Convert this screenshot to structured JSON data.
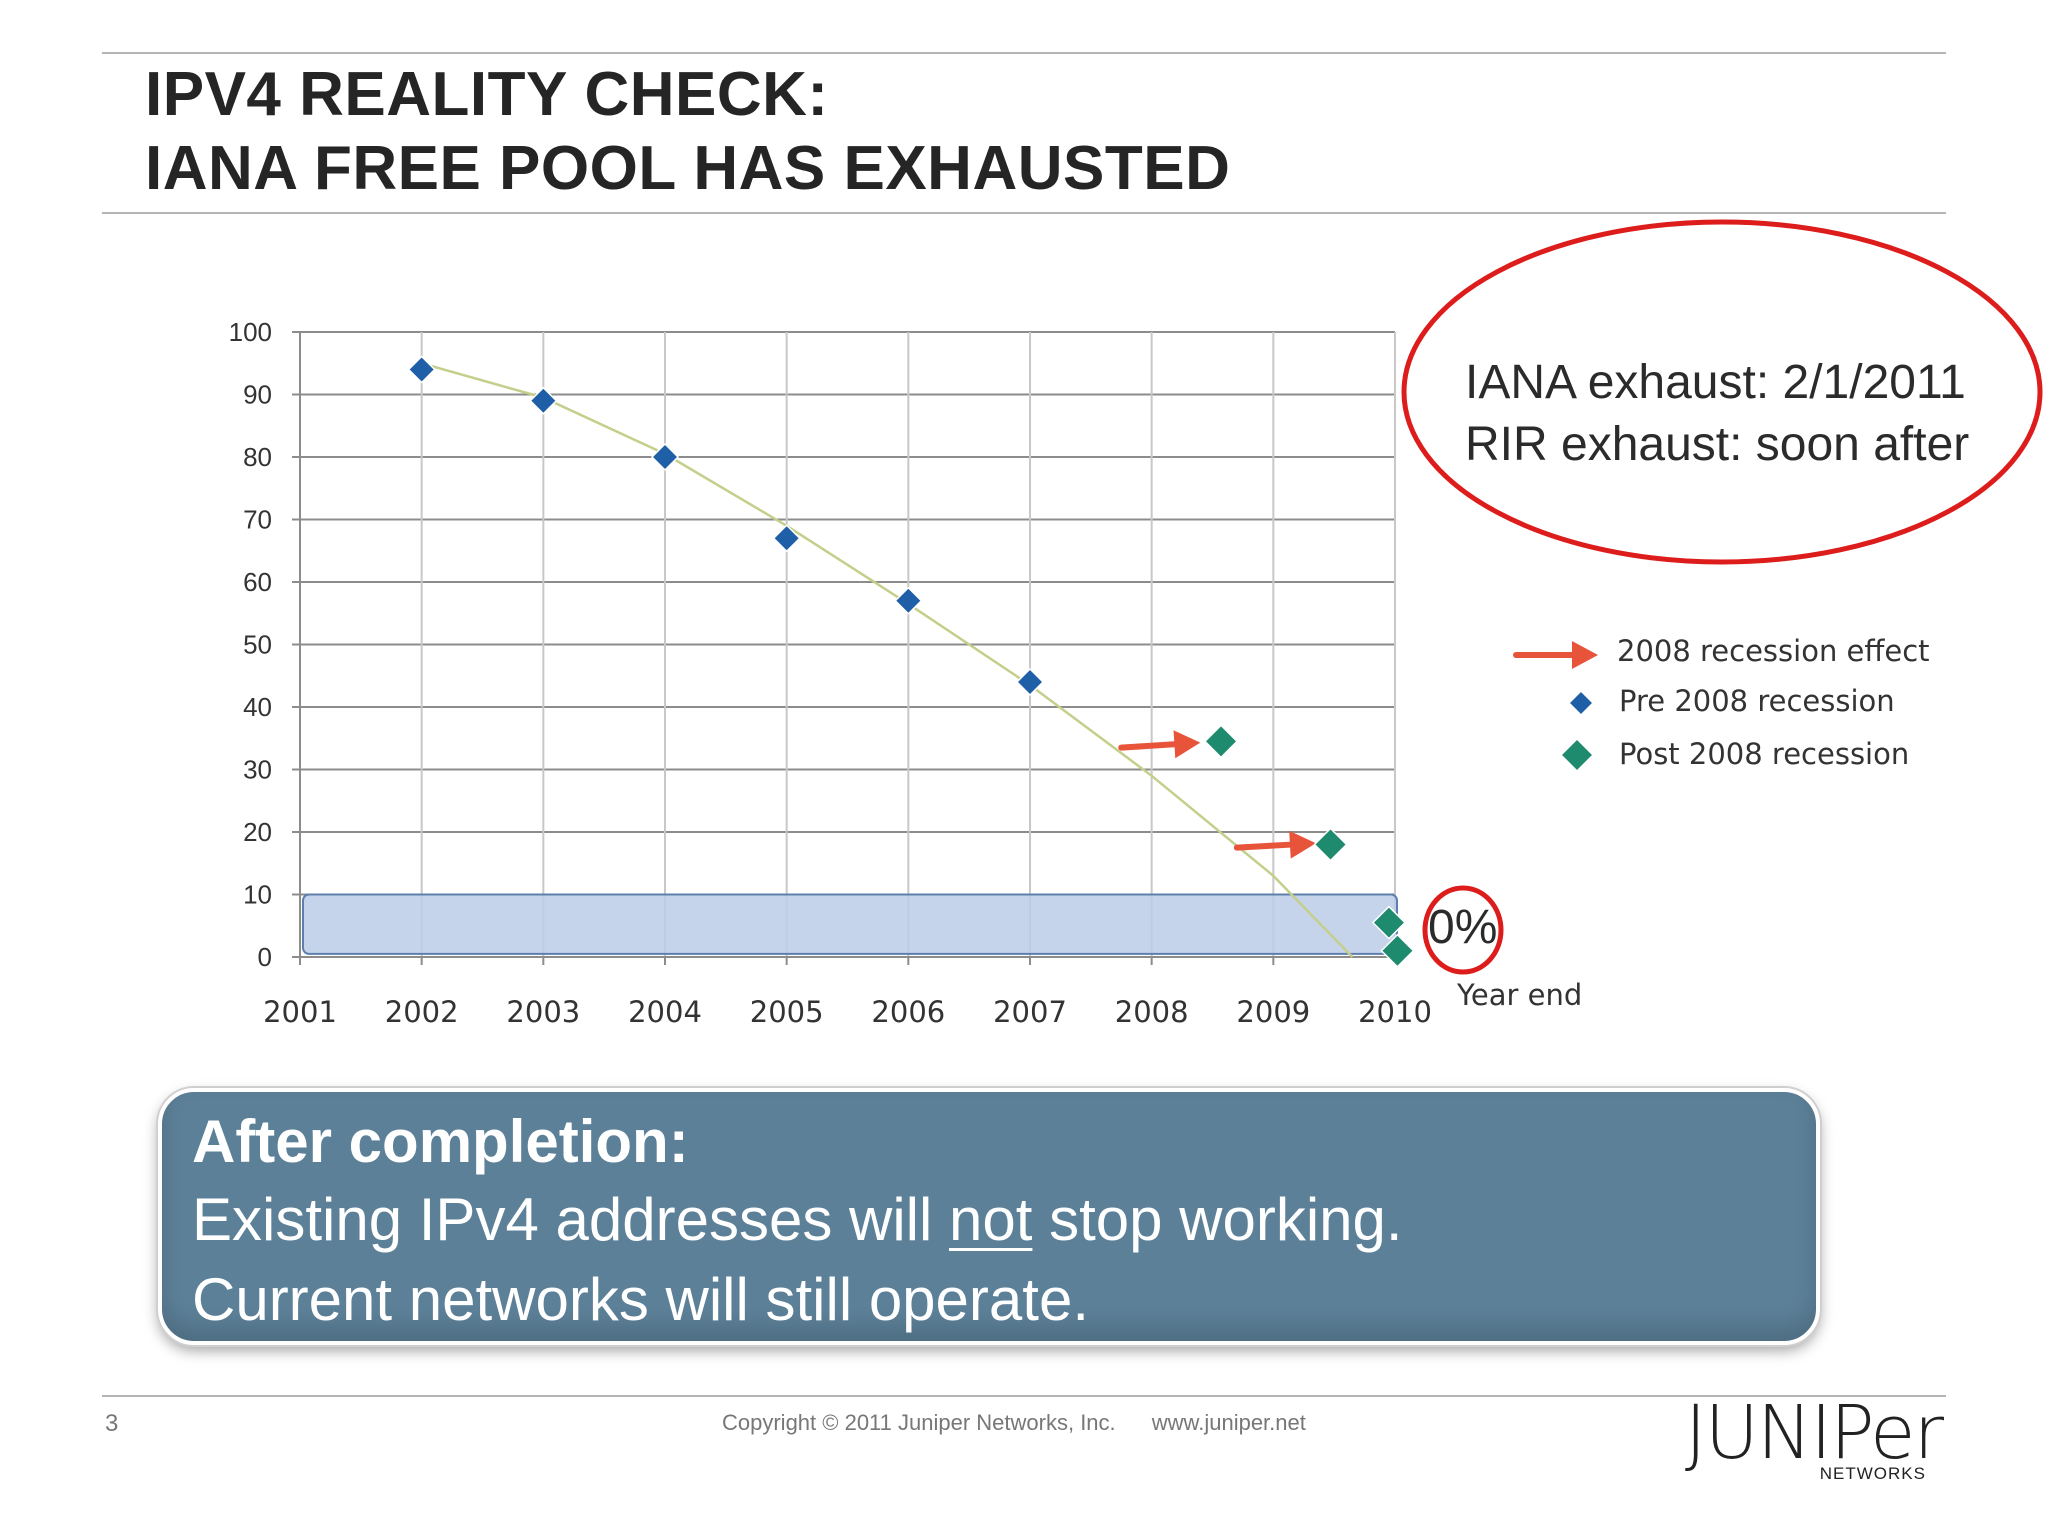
{
  "slide": {
    "title_lines": [
      "IPV4 REALITY CHECK:",
      "IANA FREE POOL HAS EXHAUSTED"
    ],
    "callout_lines": [
      "IANA exhaust: 2/1/2011",
      "RIR exhaust: soon after"
    ],
    "zero_label": "0%",
    "year_end_label": "Year end",
    "info": {
      "heading": "After completion:",
      "line1_before": "Existing IPv4 addresses will ",
      "line1_underlined": "not",
      "line1_after": " stop working.",
      "line2": "Current networks will still operate."
    },
    "footer": {
      "page_number": "3",
      "copyright": "Copyright © 2011 Juniper Networks, Inc.",
      "website": "www.juniper.net"
    },
    "logo": {
      "word": "JUNIPer",
      "sub": "NETWORKS"
    }
  },
  "colors": {
    "pre": "#1f5fa8",
    "post": "#1e8a6e",
    "arrow": "#e8543a",
    "trend": "#c3cf8a",
    "callout_ring": "#dd1c1c",
    "info_box": "#5c8098",
    "band": "#bccde8"
  },
  "chart_data": {
    "type": "scatter",
    "x_ticks": [
      "2001",
      "2002",
      "2003",
      "2004",
      "2005",
      "2006",
      "2007",
      "2008",
      "2009",
      "2010"
    ],
    "y_ticks": [
      "0",
      "10",
      "20",
      "30",
      "40",
      "50",
      "60",
      "70",
      "80",
      "90",
      "100"
    ],
    "xlim": [
      2001,
      2010
    ],
    "ylim": [
      0,
      100
    ],
    "grid": true,
    "legend_position": "right",
    "series": [
      {
        "name": "Pre 2008 recession",
        "marker": "diamond-small",
        "color": "#1f5fa8",
        "points": [
          [
            2002,
            94
          ],
          [
            2003,
            89
          ],
          [
            2004,
            80
          ],
          [
            2005,
            67
          ],
          [
            2006,
            57
          ],
          [
            2007,
            44
          ]
        ]
      },
      {
        "name": "Post 2008 recession",
        "marker": "diamond-large",
        "color": "#1e8a6e",
        "points": [
          [
            2008.57,
            34.5
          ],
          [
            2009.47,
            18
          ],
          [
            2009.95,
            5.5
          ],
          [
            2010.02,
            1
          ]
        ]
      }
    ],
    "trendline": [
      [
        2002,
        95
      ],
      [
        2003,
        89.5
      ],
      [
        2004,
        80.5
      ],
      [
        2005,
        69
      ],
      [
        2006,
        56.5
      ],
      [
        2007,
        43.5
      ],
      [
        2008,
        29
      ],
      [
        2009,
        13
      ],
      [
        2009.65,
        0
      ]
    ],
    "annotations": [
      {
        "name": "2008 recession effect",
        "type": "arrow",
        "from": [
          2007.75,
          33.5
        ],
        "to": [
          2008.4,
          34.3
        ]
      },
      {
        "name": "2008 recession effect",
        "type": "arrow",
        "from": [
          2008.7,
          17.5
        ],
        "to": [
          2009.35,
          18.2
        ]
      }
    ],
    "band": {
      "y_from": 0.5,
      "y_to": 10
    },
    "legend": [
      "2008 recession effect",
      "Pre 2008 recession",
      "Post 2008 recession"
    ]
  }
}
